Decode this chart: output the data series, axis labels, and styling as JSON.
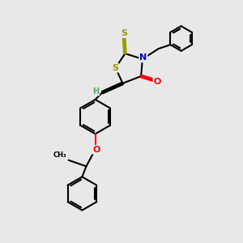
{
  "bg_color": "#e8e8e8",
  "bond_color": "#000000",
  "bond_width": 1.5,
  "atom_colors": {
    "S": "#999900",
    "N": "#0000cc",
    "O": "#ff0000",
    "C": "#000000",
    "H": "#5aaa5a"
  },
  "font_size": 8,
  "figsize": [
    3.0,
    3.0
  ],
  "dpi": 100
}
